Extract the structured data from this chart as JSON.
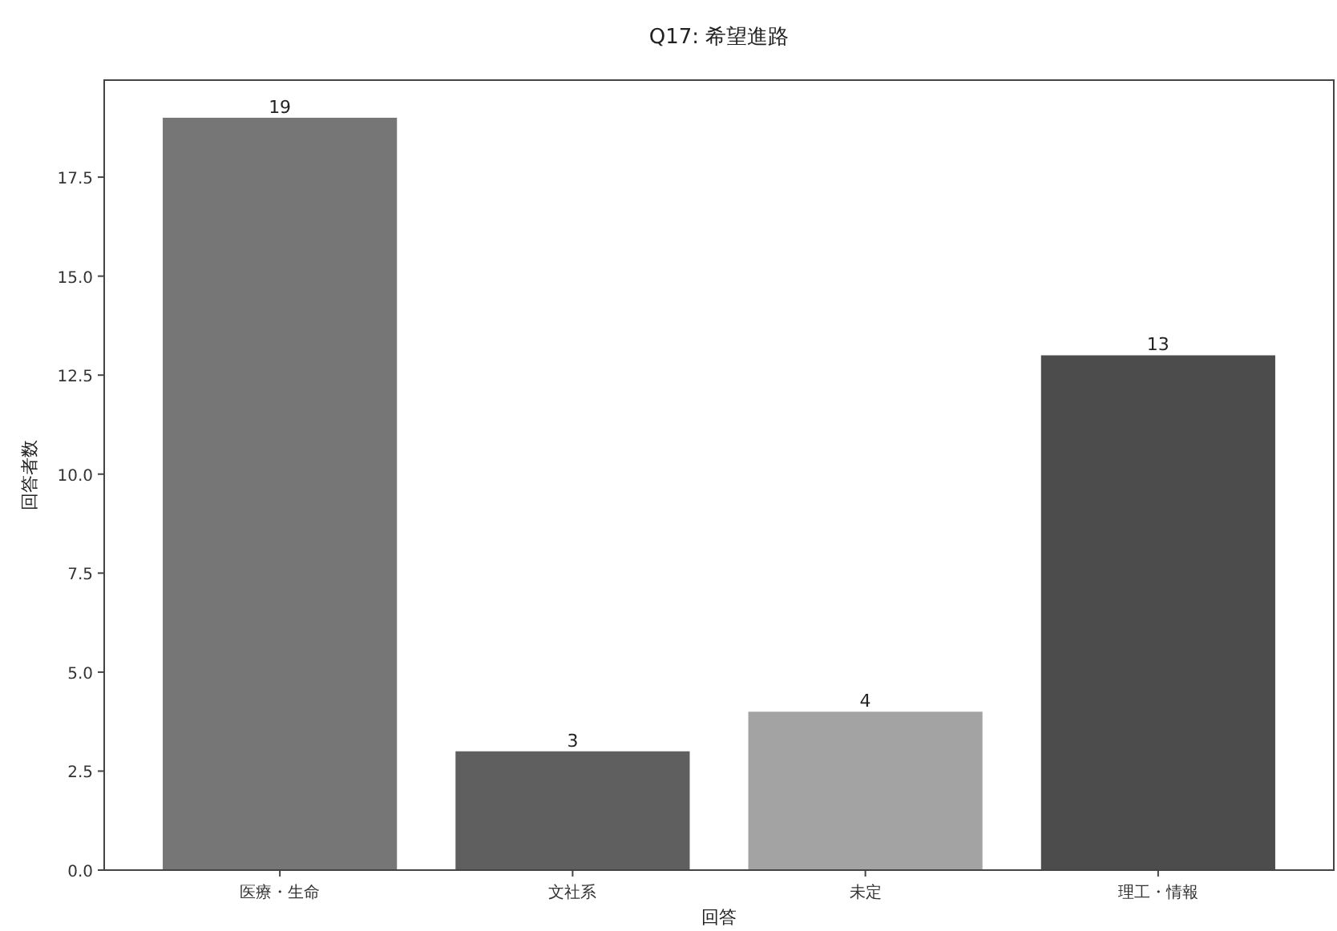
{
  "chart_data": {
    "type": "bar",
    "title": "Q17: 希望進路",
    "xlabel": "回答",
    "ylabel": "回答者数",
    "categories": [
      "医療・生命",
      "文社系",
      "未定",
      "理工・情報"
    ],
    "values": [
      19,
      3,
      4,
      13
    ],
    "colors": [
      "#767676",
      "#5f5f5f",
      "#a3a3a3",
      "#4c4c4c"
    ],
    "ylim": [
      0,
      19.95
    ],
    "yticks": [
      {
        "value": 0,
        "label": "0.0"
      },
      {
        "value": 2.5,
        "label": "2.5"
      },
      {
        "value": 5,
        "label": "5.0"
      },
      {
        "value": 7.5,
        "label": "7.5"
      },
      {
        "value": 10,
        "label": "10.0"
      },
      {
        "value": 12.5,
        "label": "12.5"
      },
      {
        "value": 15,
        "label": "15.0"
      },
      {
        "value": 17.5,
        "label": "17.5"
      }
    ],
    "data_labels": true,
    "grid": false
  }
}
